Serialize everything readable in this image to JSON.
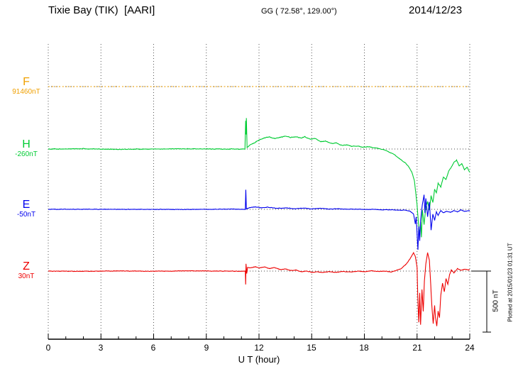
{
  "header": {
    "station": "Tixie Bay (TIK)  [AARI]",
    "coords": "GG ( 72.58°, 129.00°)",
    "date": "2014/12/23"
  },
  "xaxis": {
    "label": "U T (hour)",
    "ticks": [
      "0",
      "3",
      "6",
      "9",
      "12",
      "15",
      "18",
      "21",
      "24"
    ]
  },
  "scale_bar": {
    "label": "500 nT",
    "nT": 500
  },
  "footer_note": "Plotted at 2015/01/23 01:31 UT",
  "chart_data": {
    "type": "line",
    "title": "Magnetogram Tixie Bay (TIK) [AARI] 2014/12/23",
    "xlabel": "U T (hour)",
    "xlim": [
      0,
      24
    ],
    "x_unit": "hour",
    "grid": true,
    "amplitude_scale_nT": 500,
    "series": [
      {
        "name": "F",
        "baseline_value": "91460nT",
        "color": "#f0a000",
        "style": "dotted",
        "noise_nT": 1,
        "points": [
          [
            0,
            0
          ],
          [
            24,
            0
          ]
        ]
      },
      {
        "name": "H",
        "baseline_value": "-260nT",
        "color": "#00cc33",
        "style": "solid",
        "noise_nT": 4,
        "points": [
          [
            0,
            0
          ],
          [
            2,
            2
          ],
          [
            4,
            -2
          ],
          [
            6,
            0
          ],
          [
            8,
            2
          ],
          [
            10,
            0
          ],
          [
            11.0,
            0
          ],
          [
            11.2,
            0
          ],
          [
            11.24,
            230
          ],
          [
            11.26,
            120
          ],
          [
            11.28,
            255
          ],
          [
            11.32,
            10
          ],
          [
            11.5,
            35
          ],
          [
            11.8,
            55
          ],
          [
            12,
            75
          ],
          [
            12.3,
            90
          ],
          [
            12.6,
            100
          ],
          [
            12.9,
            85
          ],
          [
            13.2,
            95
          ],
          [
            13.5,
            105
          ],
          [
            13.8,
            95
          ],
          [
            14.1,
            100
          ],
          [
            14.4,
            90
          ],
          [
            14.6,
            100
          ],
          [
            14.9,
            80
          ],
          [
            15.2,
            85
          ],
          [
            15.5,
            60
          ],
          [
            15.8,
            65
          ],
          [
            16.1,
            45
          ],
          [
            16.4,
            50
          ],
          [
            16.7,
            30
          ],
          [
            17,
            35
          ],
          [
            17.3,
            20
          ],
          [
            17.6,
            25
          ],
          [
            17.9,
            15
          ],
          [
            18.2,
            20
          ],
          [
            18.5,
            10
          ],
          [
            18.8,
            5
          ],
          [
            19.1,
            -5
          ],
          [
            19.4,
            -25
          ],
          [
            19.7,
            -45
          ],
          [
            20,
            -80
          ],
          [
            20.3,
            -110
          ],
          [
            20.5,
            -140
          ],
          [
            20.7,
            -190
          ],
          [
            20.85,
            -260
          ],
          [
            21,
            -460
          ],
          [
            21.1,
            -640
          ],
          [
            21.15,
            -700
          ],
          [
            21.2,
            -600
          ],
          [
            21.25,
            -720
          ],
          [
            21.3,
            -500
          ],
          [
            21.4,
            -620
          ],
          [
            21.5,
            -480
          ],
          [
            21.6,
            -430
          ],
          [
            21.7,
            -500
          ],
          [
            21.8,
            -380
          ],
          [
            21.9,
            -440
          ],
          [
            22,
            -330
          ],
          [
            22.1,
            -360
          ],
          [
            22.2,
            -280
          ],
          [
            22.35,
            -310
          ],
          [
            22.5,
            -230
          ],
          [
            22.65,
            -250
          ],
          [
            22.8,
            -180
          ],
          [
            22.95,
            -150
          ],
          [
            23.1,
            -110
          ],
          [
            23.25,
            -90
          ],
          [
            23.4,
            -140
          ],
          [
            23.55,
            -120
          ],
          [
            23.7,
            -170
          ],
          [
            23.85,
            -150
          ],
          [
            24,
            -190
          ]
        ]
      },
      {
        "name": "E",
        "baseline_value": "-50nT",
        "color": "#0000ee",
        "style": "solid",
        "noise_nT": 3,
        "points": [
          [
            0,
            0
          ],
          [
            3,
            1
          ],
          [
            6,
            -1
          ],
          [
            9,
            0
          ],
          [
            10.5,
            2
          ],
          [
            11,
            0
          ],
          [
            11.22,
            0
          ],
          [
            11.25,
            160
          ],
          [
            11.28,
            5
          ],
          [
            11.5,
            15
          ],
          [
            11.8,
            20
          ],
          [
            12.1,
            12
          ],
          [
            12.5,
            18
          ],
          [
            13,
            8
          ],
          [
            13.5,
            12
          ],
          [
            14,
            5
          ],
          [
            14.5,
            10
          ],
          [
            15,
            3
          ],
          [
            15.5,
            8
          ],
          [
            16,
            2
          ],
          [
            16.5,
            5
          ],
          [
            17,
            0
          ],
          [
            17.5,
            3
          ],
          [
            18,
            -2
          ],
          [
            18.5,
            0
          ],
          [
            19,
            -5
          ],
          [
            19.5,
            -3
          ],
          [
            20,
            -8
          ],
          [
            20.3,
            -5
          ],
          [
            20.6,
            -15
          ],
          [
            20.8,
            -40
          ],
          [
            20.9,
            -120
          ],
          [
            20.95,
            -60
          ],
          [
            21,
            -200
          ],
          [
            21.05,
            -330
          ],
          [
            21.1,
            -140
          ],
          [
            21.15,
            -260
          ],
          [
            21.2,
            -90
          ],
          [
            21.3,
            40
          ],
          [
            21.4,
            120
          ],
          [
            21.45,
            -30
          ],
          [
            21.5,
            90
          ],
          [
            21.6,
            -60
          ],
          [
            21.7,
            60
          ],
          [
            21.8,
            -170
          ],
          [
            21.9,
            -40
          ],
          [
            22,
            -90
          ],
          [
            22.1,
            -20
          ],
          [
            22.2,
            -50
          ],
          [
            22.35,
            -10
          ],
          [
            22.5,
            -30
          ],
          [
            22.7,
            -15
          ],
          [
            22.9,
            -25
          ],
          [
            23.1,
            -10
          ],
          [
            23.3,
            -20
          ],
          [
            23.5,
            -5
          ],
          [
            23.7,
            -15
          ],
          [
            24,
            -10
          ]
        ]
      },
      {
        "name": "Z",
        "baseline_value": "30nT",
        "color": "#ee0000",
        "style": "solid",
        "noise_nT": 3,
        "points": [
          [
            0,
            0
          ],
          [
            2,
            -2
          ],
          [
            4,
            1
          ],
          [
            6,
            -1
          ],
          [
            8,
            2
          ],
          [
            10,
            0
          ],
          [
            11,
            -2
          ],
          [
            11.22,
            0
          ],
          [
            11.24,
            -110
          ],
          [
            11.26,
            60
          ],
          [
            11.3,
            -20
          ],
          [
            11.35,
            30
          ],
          [
            11.5,
            25
          ],
          [
            11.8,
            35
          ],
          [
            12,
            25
          ],
          [
            12.3,
            35
          ],
          [
            12.6,
            20
          ],
          [
            12.9,
            28
          ],
          [
            13.2,
            12
          ],
          [
            13.5,
            18
          ],
          [
            13.8,
            5
          ],
          [
            14.1,
            8
          ],
          [
            14.4,
            -5
          ],
          [
            14.7,
            0
          ],
          [
            15,
            -10
          ],
          [
            15.3,
            -5
          ],
          [
            15.6,
            -12
          ],
          [
            16,
            -5
          ],
          [
            16.4,
            -10
          ],
          [
            16.8,
            -3
          ],
          [
            17.2,
            -8
          ],
          [
            17.6,
            0
          ],
          [
            18,
            -5
          ],
          [
            18.4,
            2
          ],
          [
            18.8,
            -3
          ],
          [
            19.2,
            0
          ],
          [
            19.5,
            -8
          ],
          [
            19.8,
            5
          ],
          [
            20.1,
            20
          ],
          [
            20.4,
            60
          ],
          [
            20.6,
            100
          ],
          [
            20.8,
            150
          ],
          [
            20.9,
            120
          ],
          [
            21,
            30
          ],
          [
            21.05,
            -250
          ],
          [
            21.1,
            -420
          ],
          [
            21.15,
            -180
          ],
          [
            21.2,
            -440
          ],
          [
            21.28,
            -150
          ],
          [
            21.35,
            -330
          ],
          [
            21.42,
            -80
          ],
          [
            21.5,
            60
          ],
          [
            21.6,
            150
          ],
          [
            21.7,
            90
          ],
          [
            21.78,
            -120
          ],
          [
            21.85,
            -300
          ],
          [
            21.92,
            -430
          ],
          [
            22,
            -280
          ],
          [
            22.05,
            -380
          ],
          [
            22.12,
            -450
          ],
          [
            22.2,
            -330
          ],
          [
            22.28,
            -380
          ],
          [
            22.35,
            -200
          ],
          [
            22.45,
            -100
          ],
          [
            22.55,
            -170
          ],
          [
            22.65,
            -60
          ],
          [
            22.75,
            -110
          ],
          [
            22.85,
            -30
          ],
          [
            22.95,
            10
          ],
          [
            23.1,
            -15
          ],
          [
            23.3,
            20
          ],
          [
            23.5,
            5
          ],
          [
            23.7,
            15
          ],
          [
            24,
            10
          ]
        ]
      }
    ]
  }
}
